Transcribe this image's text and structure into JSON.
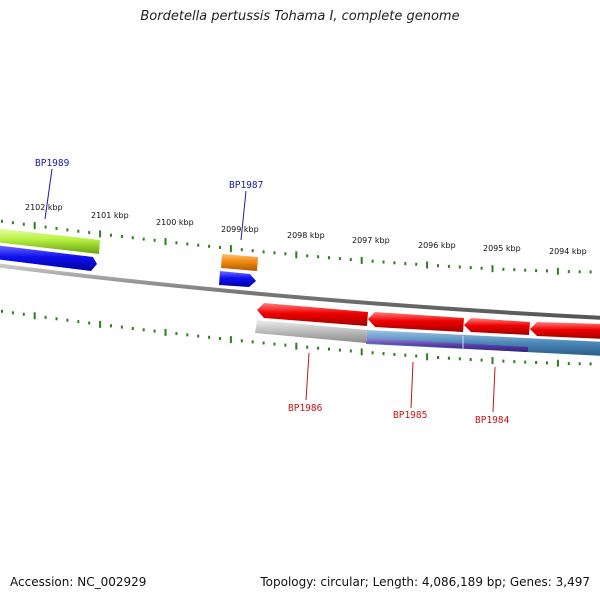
{
  "title": "Bordetella pertussis Tohama I, complete genome",
  "footer": {
    "accession": "Accession: NC_002929",
    "info": "Topology: circular; Length: 4,086,189 bp; Genes: 3,497"
  },
  "colors": {
    "tick": "#2e7d1f",
    "backbone": "#7a7a7a",
    "label_forward": "#1a1aa8",
    "label_reverse": "#c81414"
  },
  "scale_labels": [
    "2102 kbp",
    "2101 kbp",
    "2100 kbp",
    "2099 kbp",
    "2098 kbp",
    "2097 kbp",
    "2096 kbp",
    "2095 kbp",
    "2094 kbp"
  ],
  "gene_labels": [
    {
      "name": "BP1989",
      "strand": "forward"
    },
    {
      "name": "BP1987",
      "strand": "forward"
    },
    {
      "name": "BP1986",
      "strand": "reverse"
    },
    {
      "name": "BP1985",
      "strand": "reverse"
    },
    {
      "name": "BP1984",
      "strand": "reverse"
    }
  ]
}
